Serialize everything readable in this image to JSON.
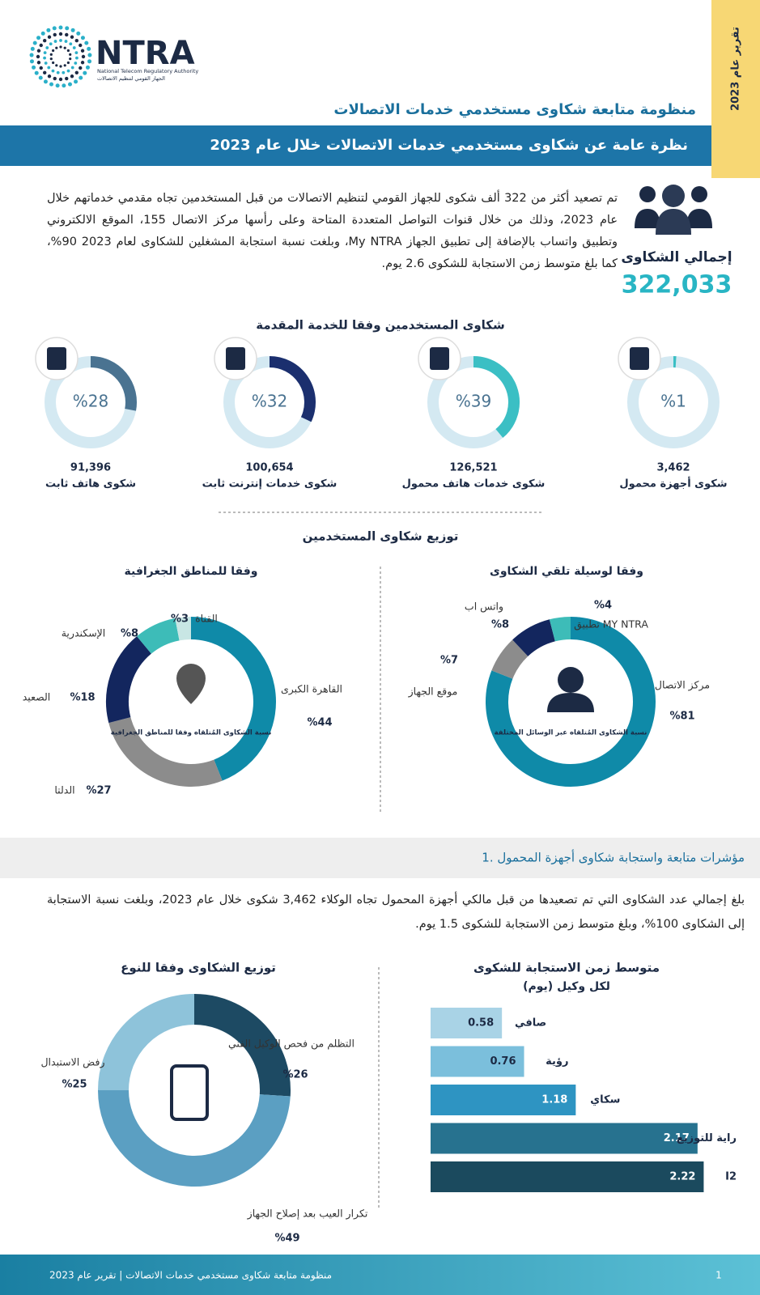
{
  "header": {
    "logo_name": "NTRA",
    "logo_en": "National Telecom Regulatory Authority",
    "logo_ar": "الجهاز القومي لتنظيم الاتصالات",
    "side_tag": "تقرير عام 2023",
    "title": "منظومة متابعة شكاوى مستخدمي خدمات الاتصالات",
    "banner": "نظرة عامة عن شكاوى مستخدمي خدمات الاتصالات خلال عام 2023"
  },
  "intro": {
    "text": "تم تصعيد أكثر من 322 ألف شكوى للجهاز القومي لتنظيم الاتصالات من قبل المستخدمين تجاه مقدمي خدماتهم خلال عام 2023، وذلك من خلال قنوات التواصل المتعددة المتاحة وعلى رأسها مركز الاتصال 155، الموقع الالكتروني وتطبيق واتساب بالإضافة إلى تطبيق الجهاز My NTRA، وبلغت نسبة استجابة المشغلين للشكاوى لعام 2023 90%، كما بلغ متوسط زمن الاستجابة للشكوى 2.6 يوم.",
    "total_label": "إجمالي الشكاوى",
    "total_value": "322,033"
  },
  "services": {
    "title": "شكاوى المستخدمين وفقا للخدمة المقدمة",
    "items": [
      {
        "value": 28,
        "value_label": "%28",
        "count": "91,396",
        "label": "شكوى هاتف ثابت",
        "color": "#4a7391"
      },
      {
        "value": 32,
        "value_label": "%32",
        "count": "100,654",
        "label": "شكوى خدمات إنترنت ثابت",
        "color": "#1b2f6e"
      },
      {
        "value": 39,
        "value_label": "%39",
        "count": "126,521",
        "label": "شكوى خدمات هاتف محمول",
        "color": "#3bbfc4"
      },
      {
        "value": 1,
        "value_label": "%1",
        "count": "3,462",
        "label": "شكوى أجهزة محمول",
        "color": "#3bbfc4"
      }
    ]
  },
  "distribution": {
    "title": "توزيع شكاوى المستخدمين",
    "channels": {
      "title": "وفقا لوسيلة تلقي الشكاوى",
      "center": "نسبة الشكاوى المُتلقاه عبر الوسائل المختلفة",
      "slices": [
        {
          "name": "مركز الاتصال",
          "value": 81,
          "label": "%81",
          "color": "#0f8aa8"
        },
        {
          "name": "موقع الجهاز",
          "value": 7,
          "label": "%7",
          "color": "#8c8c8c"
        },
        {
          "name": "واتس اب",
          "value": 8,
          "label": "%8",
          "color": "#13265e"
        },
        {
          "name": "تطبيق MY NTRA",
          "value": 4,
          "label": "%4",
          "color": "#3dbcb8"
        }
      ]
    },
    "regions": {
      "title": "وفقا للمناطق الجغرافية",
      "center": "نسبة الشكاوى المُتلقاه وفقا للمناطق الجغرافية",
      "slices": [
        {
          "name": "القاهرة الكبرى",
          "value": 44,
          "label": "%44",
          "color": "#0f8aa8"
        },
        {
          "name": "الدلتا",
          "value": 27,
          "label": "%27",
          "color": "#8c8c8c"
        },
        {
          "name": "الصعيد",
          "value": 18,
          "label": "%18",
          "color": "#13265e"
        },
        {
          "name": "الإسكندرية",
          "value": 8,
          "label": "%8",
          "color": "#3dbcb8"
        },
        {
          "name": "القناة",
          "value": 3,
          "label": "%3",
          "color": "#c8e6e4"
        }
      ]
    }
  },
  "mobile": {
    "heading": "1. مؤشرات متابعة واستجابة شكاوى أجهزة المحمول",
    "text": "بلغ إجمالي عدد الشكاوى التي تم تصعيدها من قبل مالكي أجهزة المحمول تجاه الوكلاء 3,462 شكوى خلال عام 2023، وبلغت نسبة الاستجابة إلى الشكاوى 100%، وبلغ متوسط زمن الاستجابة للشكوى 1.5 يوم.",
    "response_time": {
      "title": "متوسط زمن الاستجابة للشكوى",
      "subtitle": "(يوم) لكل وكيل",
      "bars": [
        {
          "name": "صافي",
          "value": 0.58,
          "color": "#a9d3e6"
        },
        {
          "name": "رؤية",
          "value": 0.76,
          "color": "#7bbfdc"
        },
        {
          "name": "سكاي",
          "value": 1.18,
          "color": "#2e94c2"
        },
        {
          "name": "راية للتوزيع",
          "value": 2.17,
          "color": "#27728f"
        },
        {
          "name": "I2",
          "value": 2.22,
          "color": "#1b4a5e"
        }
      ]
    },
    "types": {
      "title": "توزيع الشكاوى وفقا للنوع",
      "slices": [
        {
          "name": "التظلم من فحص الوكيل الفني",
          "value": 26,
          "label": "%26",
          "color": "#1d4a63"
        },
        {
          "name": "تكرار العيب بعد إصلاح الجهاز",
          "value": 49,
          "label": "%49",
          "color": "#5b9fc2"
        },
        {
          "name": "رفض الاستبدال",
          "value": 25,
          "label": "%25",
          "color": "#8ec3da"
        }
      ]
    }
  },
  "footer": {
    "text": "منظومة متابعة شكاوى مستخدمي خدمات الاتصالات | تقرير عام 2023",
    "page": "1"
  }
}
